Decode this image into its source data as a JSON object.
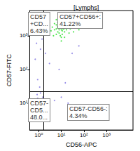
{
  "chart_data": {
    "type": "scatter",
    "title": "[Lymphs]",
    "x_label": "CD56-APC",
    "y_label": "CD57-FITC",
    "log": true,
    "grid": false,
    "xlim": [
      0.4,
      15000
    ],
    "ylim": [
      1.6,
      5600
    ],
    "xticks": [
      {
        "value": 1,
        "label": "10⁰"
      },
      {
        "value": 10,
        "label": "10¹"
      },
      {
        "value": 100,
        "label": "10²"
      },
      {
        "value": 1000,
        "label": "10³"
      }
    ],
    "yticks": [
      {
        "value": 10,
        "label": "10¹"
      },
      {
        "value": 100,
        "label": "10²"
      },
      {
        "value": 1000,
        "label": "10³"
      }
    ],
    "gates": {
      "x": 1.7,
      "y": 22
    },
    "annotations": [
      {
        "lines": [
          "CD57",
          "+CD...",
          "6.43%"
        ]
      },
      {
        "lines": [
          "CD57+CD56+:",
          "41.22%"
        ]
      },
      {
        "lines": [
          "CD57-",
          "CD5...",
          "48.0..."
        ]
      },
      {
        "lines": [
          "CD57-CD56-:",
          "4.34%"
        ]
      }
    ],
    "series": [
      {
        "color": "#7b6ee0",
        "values": [
          [
            0.8,
            5
          ],
          [
            1.0,
            8
          ],
          [
            1.2,
            4
          ],
          [
            0.6,
            10
          ],
          [
            1.4,
            6
          ],
          [
            0.9,
            14
          ],
          [
            0.7,
            3
          ],
          [
            1.1,
            12
          ],
          [
            1.3,
            9
          ],
          [
            0.5,
            7
          ],
          [
            1.5,
            15
          ],
          [
            0.85,
            18
          ],
          [
            1.0,
            3
          ],
          [
            0.65,
            5
          ],
          [
            1.2,
            20
          ],
          [
            0.75,
            8
          ],
          [
            1.6,
            4
          ],
          [
            0.55,
            12
          ],
          [
            1.05,
            6
          ],
          [
            0.95,
            10
          ],
          [
            2.5,
            8
          ],
          [
            5,
            12
          ],
          [
            3,
            5
          ],
          [
            1.1,
            30
          ],
          [
            0.9,
            50
          ],
          [
            0.7,
            200
          ],
          [
            1.2,
            400
          ],
          [
            1.4,
            800
          ],
          [
            2,
            300
          ],
          [
            3,
            150
          ],
          [
            20,
            10
          ],
          [
            40,
            6
          ],
          [
            10,
            15
          ],
          [
            15,
            40
          ],
          [
            8,
            100
          ],
          [
            0.8,
            600
          ],
          [
            0.6,
            1200
          ],
          [
            1.3,
            2500
          ],
          [
            30,
            300
          ],
          [
            60,
            500
          ]
        ]
      },
      {
        "color": "#22dd22",
        "values": [
          [
            8,
            1500
          ],
          [
            10,
            1800
          ],
          [
            12,
            2000
          ],
          [
            6,
            1600
          ],
          [
            15,
            1700
          ],
          [
            9,
            2200
          ],
          [
            11,
            1400
          ],
          [
            7,
            1900
          ],
          [
            13,
            2400
          ],
          [
            5,
            1500
          ],
          [
            20,
            1800
          ],
          [
            10,
            2600
          ],
          [
            8,
            1200
          ],
          [
            14,
            1300
          ],
          [
            6,
            2100
          ],
          [
            18,
            2200
          ],
          [
            4,
            1800
          ],
          [
            9,
            1000
          ],
          [
            12,
            3000
          ],
          [
            25,
            1600
          ],
          [
            7,
            2500
          ],
          [
            11,
            1100
          ],
          [
            16,
            2800
          ],
          [
            5,
            2300
          ],
          [
            30,
            2000
          ],
          [
            10,
            900
          ],
          [
            3.5,
            1400
          ],
          [
            22,
            1200
          ],
          [
            8,
            3200
          ],
          [
            13,
            1600
          ],
          [
            9,
            1700
          ],
          [
            11,
            2100
          ],
          [
            10,
            1500
          ],
          [
            12,
            1900
          ],
          [
            8,
            2000
          ],
          [
            7,
            1300
          ],
          [
            15,
            2300
          ],
          [
            6,
            1100
          ],
          [
            17,
            1500
          ],
          [
            40,
            1800
          ],
          [
            50,
            2500
          ],
          [
            3,
            2000
          ],
          [
            10,
            700
          ],
          [
            20,
            3500
          ],
          [
            6,
            3000
          ],
          [
            9,
            4000
          ],
          [
            14,
            900
          ],
          [
            28,
            2700
          ],
          [
            4.5,
            1000
          ],
          [
            35,
            1300
          ],
          [
            2.5,
            1700
          ],
          [
            60,
            1500
          ],
          [
            11,
            1700
          ],
          [
            10,
            2000
          ],
          [
            9,
            1900
          ],
          [
            12,
            1600
          ],
          [
            8,
            1700
          ],
          [
            13,
            2000
          ],
          [
            7,
            1700
          ],
          [
            11,
            2300
          ]
        ]
      }
    ]
  }
}
